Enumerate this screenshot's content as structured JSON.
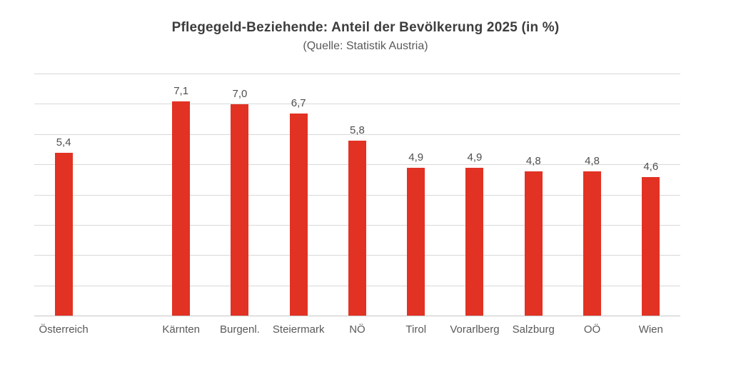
{
  "page": {
    "title": "Pflegegeld-Beziehende: Anteil der Bevölkerung 2025 (in %)",
    "subtitle": "(Quelle: Statistik Austria)"
  },
  "chart_data": {
    "type": "bar",
    "title": "Pflegegeld-Beziehende: Anteil der Bevölkerung 2025 (in %)",
    "subtitle": "(Quelle: Statistik Austria)",
    "categories": [
      "Österreich",
      "Kärnten",
      "Burgenl.",
      "Steiermark",
      "NÖ",
      "Tirol",
      "Vorarlberg",
      "Salzburg",
      "OÖ",
      "Wien"
    ],
    "values": [
      5.4,
      7.1,
      7.0,
      6.7,
      5.8,
      4.9,
      4.9,
      4.8,
      4.8,
      4.6
    ],
    "value_labels": [
      "5,4",
      "7,1",
      "7,0",
      "6,7",
      "5,8",
      "4,9",
      "4,9",
      "4,8",
      "4,8",
      "4,6"
    ],
    "ylabel": "",
    "xlabel": "",
    "ylim": [
      0,
      8
    ],
    "gridline_step": 1,
    "grid": "horizontal",
    "legend": "none",
    "y_axis_labels_visible": false,
    "gap_slot_after_index": 0,
    "decimal_separator": ",",
    "colors": {
      "bar": "#e23223",
      "gridline": "#d9d9d9",
      "axis_line": "#c6c6c6",
      "title": "#3d3d3d",
      "subtitle": "#595959",
      "data_label": "#4f4f4f",
      "category_label": "#595959",
      "background": "#ffffff"
    }
  }
}
